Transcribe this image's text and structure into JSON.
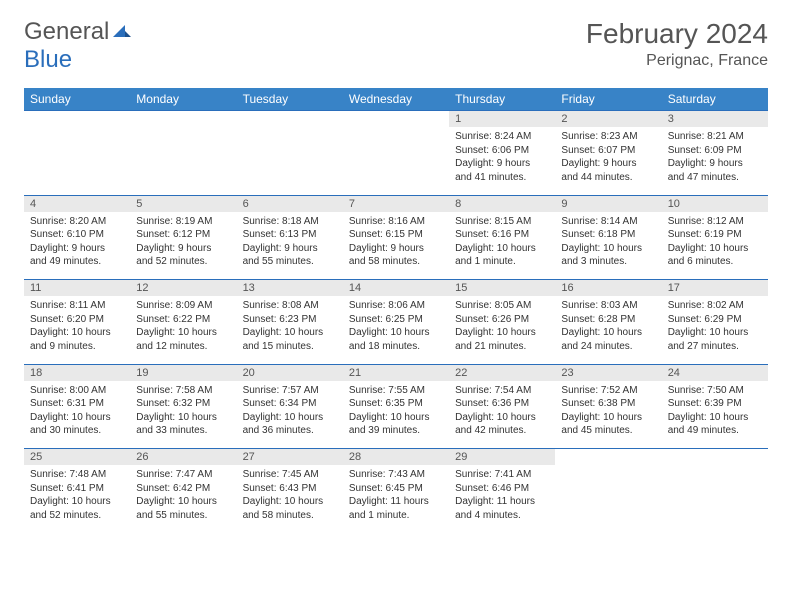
{
  "logo": {
    "text1": "General",
    "text2": "Blue"
  },
  "title": "February 2024",
  "location": "Perignac, France",
  "colors": {
    "header_bg": "#3883c7",
    "header_text": "#ffffff",
    "daynum_bg": "#e9e9e9",
    "border": "#2a6ebb",
    "text": "#333333",
    "title_text": "#555555"
  },
  "weekdays": [
    "Sunday",
    "Monday",
    "Tuesday",
    "Wednesday",
    "Thursday",
    "Friday",
    "Saturday"
  ],
  "weeks": [
    {
      "nums": [
        "",
        "",
        "",
        "",
        "1",
        "2",
        "3"
      ],
      "cells": [
        null,
        null,
        null,
        null,
        {
          "sunrise": "8:24 AM",
          "sunset": "6:06 PM",
          "daylight": "9 hours and 41 minutes."
        },
        {
          "sunrise": "8:23 AM",
          "sunset": "6:07 PM",
          "daylight": "9 hours and 44 minutes."
        },
        {
          "sunrise": "8:21 AM",
          "sunset": "6:09 PM",
          "daylight": "9 hours and 47 minutes."
        }
      ]
    },
    {
      "nums": [
        "4",
        "5",
        "6",
        "7",
        "8",
        "9",
        "10"
      ],
      "cells": [
        {
          "sunrise": "8:20 AM",
          "sunset": "6:10 PM",
          "daylight": "9 hours and 49 minutes."
        },
        {
          "sunrise": "8:19 AM",
          "sunset": "6:12 PM",
          "daylight": "9 hours and 52 minutes."
        },
        {
          "sunrise": "8:18 AM",
          "sunset": "6:13 PM",
          "daylight": "9 hours and 55 minutes."
        },
        {
          "sunrise": "8:16 AM",
          "sunset": "6:15 PM",
          "daylight": "9 hours and 58 minutes."
        },
        {
          "sunrise": "8:15 AM",
          "sunset": "6:16 PM",
          "daylight": "10 hours and 1 minute."
        },
        {
          "sunrise": "8:14 AM",
          "sunset": "6:18 PM",
          "daylight": "10 hours and 3 minutes."
        },
        {
          "sunrise": "8:12 AM",
          "sunset": "6:19 PM",
          "daylight": "10 hours and 6 minutes."
        }
      ]
    },
    {
      "nums": [
        "11",
        "12",
        "13",
        "14",
        "15",
        "16",
        "17"
      ],
      "cells": [
        {
          "sunrise": "8:11 AM",
          "sunset": "6:20 PM",
          "daylight": "10 hours and 9 minutes."
        },
        {
          "sunrise": "8:09 AM",
          "sunset": "6:22 PM",
          "daylight": "10 hours and 12 minutes."
        },
        {
          "sunrise": "8:08 AM",
          "sunset": "6:23 PM",
          "daylight": "10 hours and 15 minutes."
        },
        {
          "sunrise": "8:06 AM",
          "sunset": "6:25 PM",
          "daylight": "10 hours and 18 minutes."
        },
        {
          "sunrise": "8:05 AM",
          "sunset": "6:26 PM",
          "daylight": "10 hours and 21 minutes."
        },
        {
          "sunrise": "8:03 AM",
          "sunset": "6:28 PM",
          "daylight": "10 hours and 24 minutes."
        },
        {
          "sunrise": "8:02 AM",
          "sunset": "6:29 PM",
          "daylight": "10 hours and 27 minutes."
        }
      ]
    },
    {
      "nums": [
        "18",
        "19",
        "20",
        "21",
        "22",
        "23",
        "24"
      ],
      "cells": [
        {
          "sunrise": "8:00 AM",
          "sunset": "6:31 PM",
          "daylight": "10 hours and 30 minutes."
        },
        {
          "sunrise": "7:58 AM",
          "sunset": "6:32 PM",
          "daylight": "10 hours and 33 minutes."
        },
        {
          "sunrise": "7:57 AM",
          "sunset": "6:34 PM",
          "daylight": "10 hours and 36 minutes."
        },
        {
          "sunrise": "7:55 AM",
          "sunset": "6:35 PM",
          "daylight": "10 hours and 39 minutes."
        },
        {
          "sunrise": "7:54 AM",
          "sunset": "6:36 PM",
          "daylight": "10 hours and 42 minutes."
        },
        {
          "sunrise": "7:52 AM",
          "sunset": "6:38 PM",
          "daylight": "10 hours and 45 minutes."
        },
        {
          "sunrise": "7:50 AM",
          "sunset": "6:39 PM",
          "daylight": "10 hours and 49 minutes."
        }
      ]
    },
    {
      "nums": [
        "25",
        "26",
        "27",
        "28",
        "29",
        "",
        ""
      ],
      "cells": [
        {
          "sunrise": "7:48 AM",
          "sunset": "6:41 PM",
          "daylight": "10 hours and 52 minutes."
        },
        {
          "sunrise": "7:47 AM",
          "sunset": "6:42 PM",
          "daylight": "10 hours and 55 minutes."
        },
        {
          "sunrise": "7:45 AM",
          "sunset": "6:43 PM",
          "daylight": "10 hours and 58 minutes."
        },
        {
          "sunrise": "7:43 AM",
          "sunset": "6:45 PM",
          "daylight": "11 hours and 1 minute."
        },
        {
          "sunrise": "7:41 AM",
          "sunset": "6:46 PM",
          "daylight": "11 hours and 4 minutes."
        },
        null,
        null
      ]
    }
  ],
  "labels": {
    "sunrise": "Sunrise:",
    "sunset": "Sunset:",
    "daylight": "Daylight:"
  }
}
